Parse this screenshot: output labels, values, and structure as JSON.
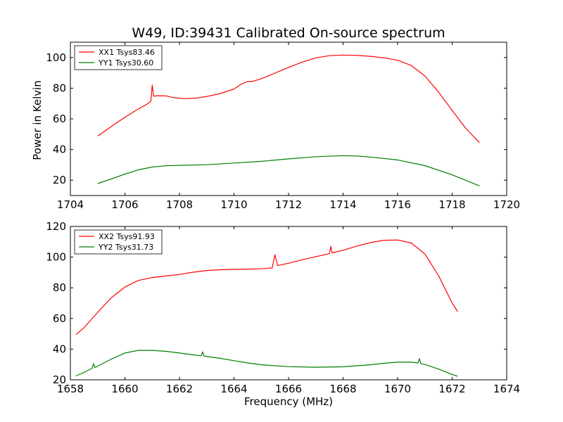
{
  "figure": {
    "title": "W49, ID:39431 Calibrated On-source spectrum",
    "ylabel": "Power in Kelvin",
    "xlabel": "Frequency (MHz)"
  },
  "colors": {
    "xx": "#ff0000",
    "yy": "#008000",
    "background": "#ffffff",
    "axes": "#000000"
  },
  "chart_data": [
    {
      "type": "line",
      "title": "W49, ID:39431 Calibrated On-source spectrum",
      "xlabel": "",
      "ylabel": "Power in Kelvin",
      "xlim": [
        1704,
        1720
      ],
      "ylim": [
        10,
        110
      ],
      "xticks": [
        1704,
        1706,
        1708,
        1710,
        1712,
        1714,
        1716,
        1718,
        1720
      ],
      "yticks": [
        20,
        40,
        60,
        80,
        100
      ],
      "grid": false,
      "legend": "top-left",
      "series": [
        {
          "name": "XX1 Tsys83.46",
          "color": "#ff0000",
          "points": [
            [
              1705.0,
              48.8
            ],
            [
              1705.3,
              52.5
            ],
            [
              1705.6,
              56.2
            ],
            [
              1706.0,
              61.0
            ],
            [
              1706.4,
              65.5
            ],
            [
              1706.8,
              69.5
            ],
            [
              1706.95,
              71.5
            ],
            [
              1707.0,
              82.0
            ],
            [
              1707.05,
              74.8
            ],
            [
              1707.2,
              75.1
            ],
            [
              1707.5,
              75.0
            ],
            [
              1707.8,
              73.8
            ],
            [
              1708.2,
              73.2
            ],
            [
              1708.6,
              73.5
            ],
            [
              1709.0,
              74.6
            ],
            [
              1709.5,
              76.5
            ],
            [
              1710.0,
              79.5
            ],
            [
              1710.3,
              83.0
            ],
            [
              1710.5,
              84.3
            ],
            [
              1710.7,
              84.5
            ],
            [
              1711.0,
              86.2
            ],
            [
              1711.5,
              89.8
            ],
            [
              1712.0,
              93.6
            ],
            [
              1712.5,
              97.0
            ],
            [
              1713.0,
              99.8
            ],
            [
              1713.5,
              101.2
            ],
            [
              1714.0,
              101.6
            ],
            [
              1714.5,
              101.4
            ],
            [
              1715.0,
              100.8
            ],
            [
              1715.5,
              99.8
            ],
            [
              1716.0,
              98.2
            ],
            [
              1716.5,
              94.8
            ],
            [
              1717.0,
              88.0
            ],
            [
              1717.5,
              77.5
            ],
            [
              1718.0,
              65.5
            ],
            [
              1718.5,
              53.8
            ],
            [
              1719.0,
              44.5
            ]
          ]
        },
        {
          "name": "YY1 Tsys30.60",
          "color": "#008000",
          "points": [
            [
              1705.0,
              17.8
            ],
            [
              1705.5,
              20.8
            ],
            [
              1706.0,
              24.0
            ],
            [
              1706.5,
              26.8
            ],
            [
              1707.0,
              28.6
            ],
            [
              1707.5,
              29.4
            ],
            [
              1708.0,
              29.7
            ],
            [
              1709.0,
              30.1
            ],
            [
              1710.0,
              31.2
            ],
            [
              1711.0,
              32.3
            ],
            [
              1712.0,
              33.9
            ],
            [
              1713.0,
              35.3
            ],
            [
              1714.0,
              36.0
            ],
            [
              1714.5,
              35.8
            ],
            [
              1715.0,
              35.1
            ],
            [
              1716.0,
              33.2
            ],
            [
              1717.0,
              29.5
            ],
            [
              1718.0,
              23.5
            ],
            [
              1719.0,
              16.3
            ]
          ]
        }
      ]
    },
    {
      "type": "line",
      "title": "",
      "xlabel": "Frequency (MHz)",
      "ylabel": "",
      "xlim": [
        1658,
        1674
      ],
      "ylim": [
        20,
        120
      ],
      "xticks": [
        1658,
        1660,
        1662,
        1664,
        1666,
        1668,
        1670,
        1672,
        1674
      ],
      "yticks": [
        20,
        40,
        60,
        80,
        100,
        120
      ],
      "grid": false,
      "legend": "top-left",
      "series": [
        {
          "name": "XX2 Tsys91.93",
          "color": "#ff0000",
          "points": [
            [
              1658.2,
              49.5
            ],
            [
              1658.5,
              54.0
            ],
            [
              1659.0,
              64.0
            ],
            [
              1659.5,
              73.5
            ],
            [
              1660.0,
              80.5
            ],
            [
              1660.5,
              84.8
            ],
            [
              1661.0,
              86.7
            ],
            [
              1661.5,
              87.7
            ],
            [
              1662.0,
              88.7
            ],
            [
              1662.5,
              90.2
            ],
            [
              1663.0,
              91.3
            ],
            [
              1663.5,
              91.8
            ],
            [
              1664.0,
              92.0
            ],
            [
              1664.5,
              92.2
            ],
            [
              1665.0,
              92.4
            ],
            [
              1665.4,
              93.0
            ],
            [
              1665.5,
              101.5
            ],
            [
              1665.6,
              94.5
            ],
            [
              1666.0,
              96.0
            ],
            [
              1666.5,
              98.3
            ],
            [
              1667.0,
              100.3
            ],
            [
              1667.5,
              102.3
            ],
            [
              1667.55,
              107.0
            ],
            [
              1667.6,
              102.8
            ],
            [
              1668.0,
              104.5
            ],
            [
              1668.5,
              107.2
            ],
            [
              1669.0,
              109.5
            ],
            [
              1669.5,
              111.0
            ],
            [
              1670.0,
              111.2
            ],
            [
              1670.5,
              109.2
            ],
            [
              1671.0,
              102.0
            ],
            [
              1671.5,
              88.0
            ],
            [
              1672.0,
              70.0
            ],
            [
              1672.2,
              64.5
            ]
          ]
        },
        {
          "name": "YY2 Tsys31.73",
          "color": "#008000",
          "points": [
            [
              1658.2,
              22.5
            ],
            [
              1658.5,
              24.8
            ],
            [
              1658.8,
              27.5
            ],
            [
              1658.85,
              30.5
            ],
            [
              1658.9,
              28.0
            ],
            [
              1659.5,
              33.5
            ],
            [
              1660.0,
              37.5
            ],
            [
              1660.5,
              39.2
            ],
            [
              1661.0,
              39.2
            ],
            [
              1661.5,
              38.6
            ],
            [
              1662.0,
              37.5
            ],
            [
              1662.5,
              36.3
            ],
            [
              1662.8,
              35.7
            ],
            [
              1662.85,
              38.2
            ],
            [
              1662.9,
              35.4
            ],
            [
              1663.5,
              34.0
            ],
            [
              1664.0,
              32.5
            ],
            [
              1664.5,
              31.0
            ],
            [
              1665.0,
              29.8
            ],
            [
              1666.0,
              28.6
            ],
            [
              1667.0,
              28.2
            ],
            [
              1668.0,
              28.5
            ],
            [
              1669.0,
              29.8
            ],
            [
              1669.5,
              30.8
            ],
            [
              1670.0,
              31.5
            ],
            [
              1670.5,
              31.5
            ],
            [
              1670.75,
              31.0
            ],
            [
              1670.8,
              33.8
            ],
            [
              1670.85,
              30.6
            ],
            [
              1671.0,
              30.0
            ],
            [
              1671.5,
              27.0
            ],
            [
              1672.0,
              23.5
            ],
            [
              1672.2,
              22.3
            ]
          ]
        }
      ]
    }
  ]
}
